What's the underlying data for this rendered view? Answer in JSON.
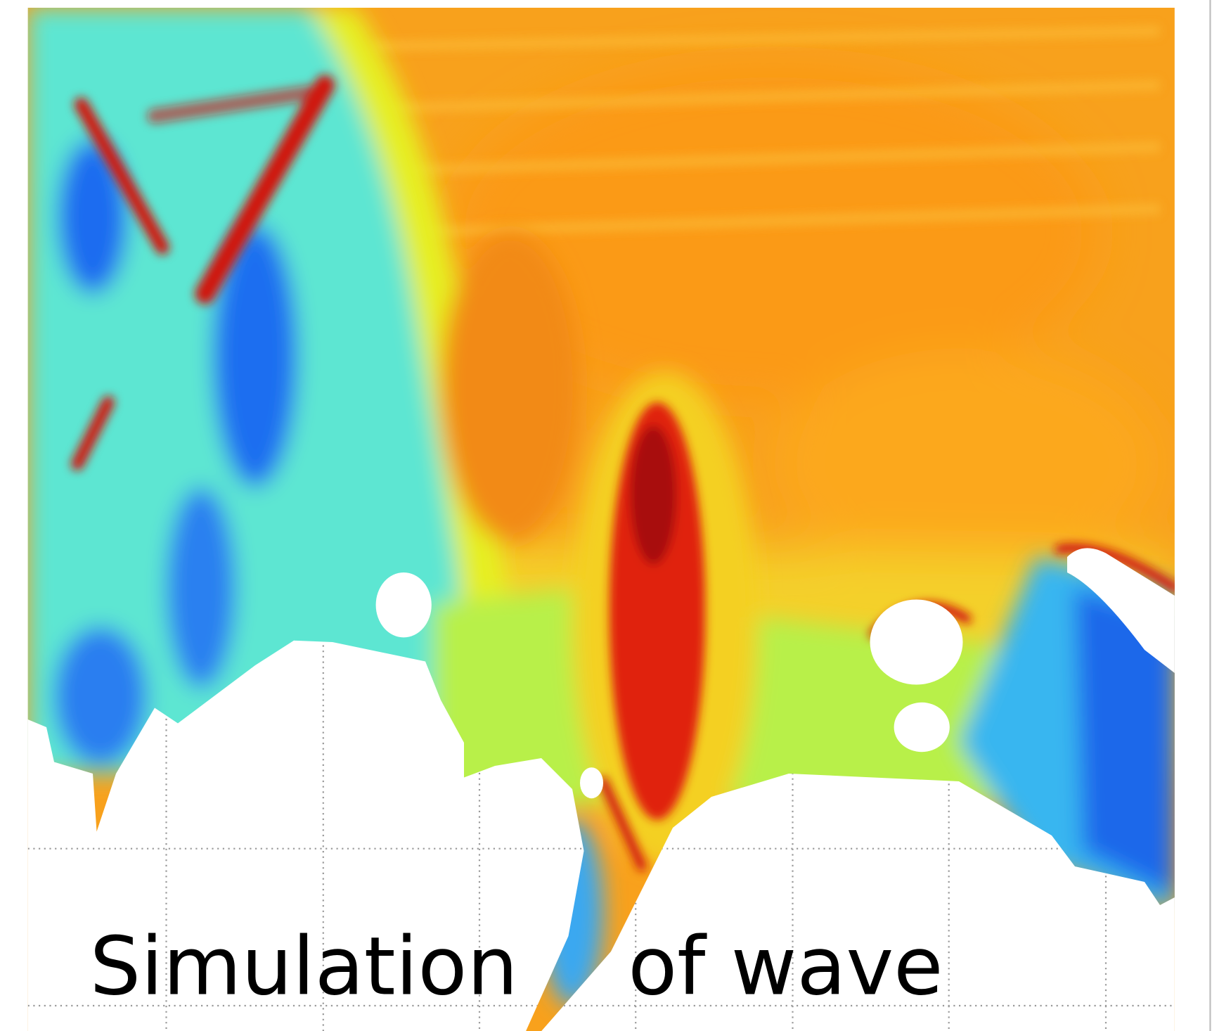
{
  "caption": {
    "words": [
      "Simulation",
      "of wave"
    ]
  }
}
